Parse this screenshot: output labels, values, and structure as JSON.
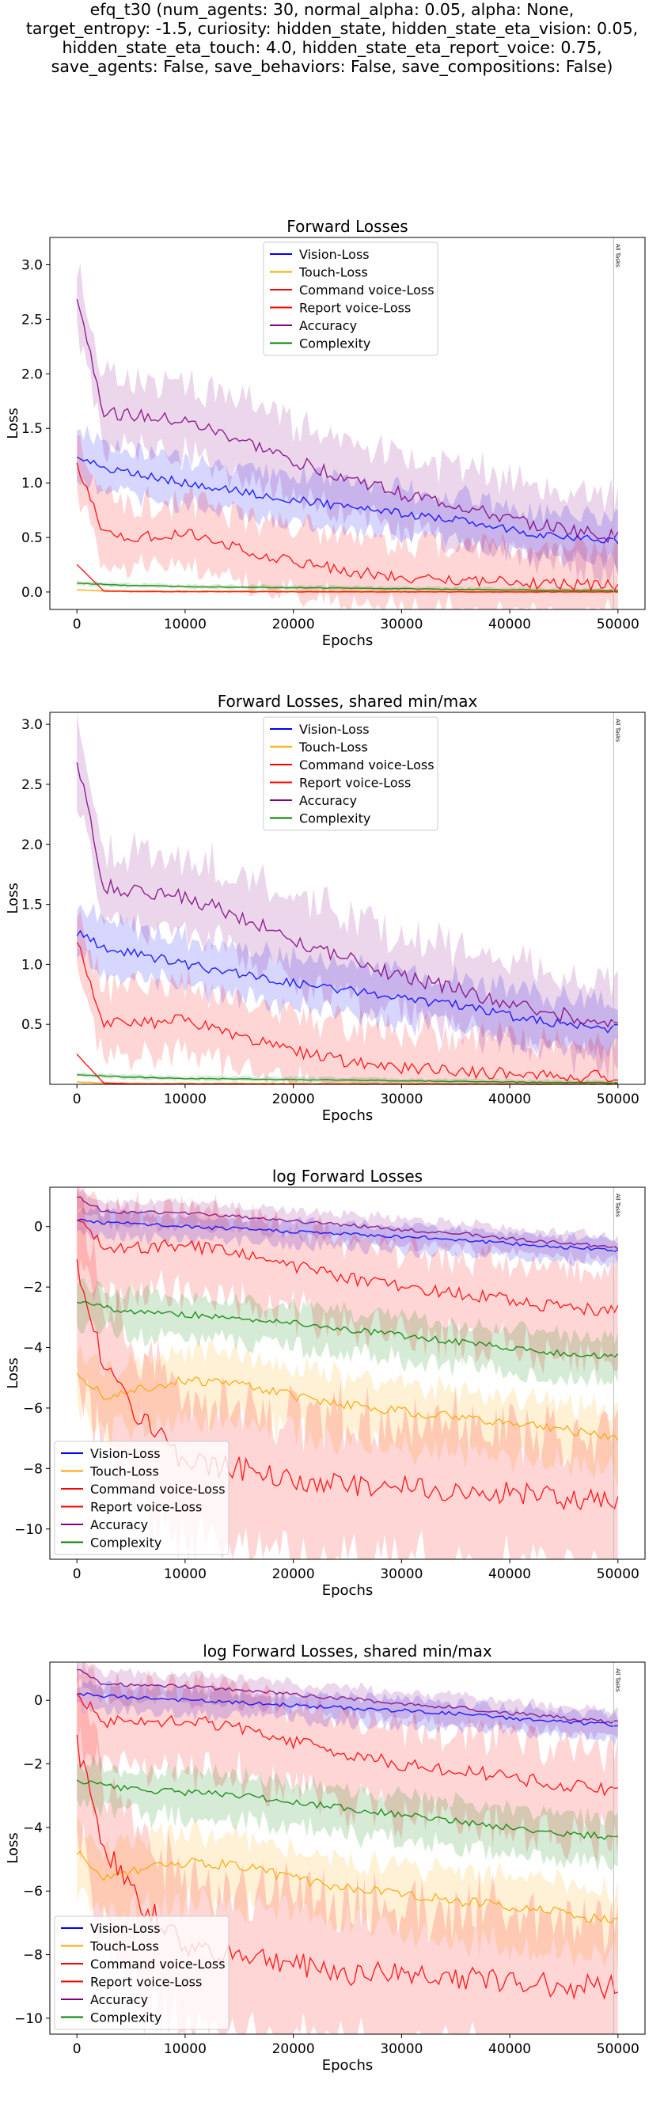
{
  "figure": {
    "title_lines": [
      "efq_t30 (num_agents: 30, normal_alpha: 0.05, alpha: None,",
      "target_entropy: -1.5, curiosity: hidden_state, hidden_state_eta_vision: 0.05,",
      "hidden_state_eta_touch: 4.0, hidden_state_eta_report_voice: 0.75,",
      "save_agents: False, save_behaviors: False, save_compositions: False)"
    ]
  },
  "chart_data": [
    {
      "type": "line",
      "title": "Forward Losses",
      "xlabel": "Epochs",
      "ylabel": "Loss",
      "xlim": [
        -2500,
        52500
      ],
      "ylim": [
        -0.16,
        3.25
      ],
      "xticks": [
        0,
        10000,
        20000,
        30000,
        40000,
        50000
      ],
      "xtick_labels": [
        "0",
        "10000",
        "20000",
        "30000",
        "40000",
        "50000"
      ],
      "yticks": [
        0,
        0.5,
        1,
        1.5,
        2,
        2.5,
        3
      ],
      "ytick_labels": [
        "0.0",
        "0.5",
        "1.0",
        "1.5",
        "2.0",
        "2.5",
        "3.0"
      ],
      "legend_position": "upper-center",
      "grid": false,
      "marker_line": {
        "x": 49600,
        "label": "All Tasks"
      },
      "series": [
        {
          "name": "Vision-Loss",
          "color": "#0000ff",
          "x": [
            0,
            2500,
            5000,
            10000,
            15000,
            20000,
            25000,
            30000,
            35000,
            40000,
            45000,
            50000
          ],
          "y": [
            1.27,
            1.13,
            1.1,
            1.0,
            0.92,
            0.85,
            0.78,
            0.72,
            0.66,
            0.57,
            0.5,
            0.46
          ]
        },
        {
          "name": "Touch-Loss",
          "color": "#ffa500",
          "x": [
            0,
            2500,
            5000,
            10000,
            15000,
            20000,
            25000,
            30000,
            35000,
            40000,
            45000,
            50000
          ],
          "y": [
            0.02,
            0.01,
            0.006,
            0.006,
            0.006,
            0.005,
            0.004,
            0.004,
            0.003,
            0.002,
            0.002,
            0.001
          ]
        },
        {
          "name": "Command voice-Loss",
          "color": "#ff0000",
          "x": [
            0,
            2500,
            5000,
            10000,
            15000,
            20000,
            25000,
            30000,
            35000,
            40000,
            45000,
            50000
          ],
          "y": [
            1.17,
            0.52,
            0.5,
            0.54,
            0.4,
            0.28,
            0.19,
            0.14,
            0.11,
            0.09,
            0.07,
            0.06
          ]
        },
        {
          "name": "Report voice-Loss",
          "color": "#ff0000",
          "x": [
            0,
            2500,
            5000,
            10000,
            15000,
            20000,
            25000,
            30000,
            35000,
            40000,
            45000,
            50000
          ],
          "y": [
            0.25,
            0.01,
            0.004,
            0.003,
            0.003,
            0.002,
            0.002,
            0.001,
            0.001,
            0.001,
            0.001,
            0.001
          ]
        },
        {
          "name": "Accuracy",
          "color": "#800080",
          "x": [
            0,
            2500,
            5000,
            10000,
            15000,
            20000,
            25000,
            30000,
            35000,
            40000,
            45000,
            50000
          ],
          "y": [
            2.72,
            1.65,
            1.62,
            1.56,
            1.4,
            1.2,
            1.05,
            0.9,
            0.8,
            0.66,
            0.58,
            0.5
          ]
        },
        {
          "name": "Complexity",
          "color": "#008000",
          "x": [
            0,
            2500,
            5000,
            10000,
            15000,
            20000,
            25000,
            30000,
            35000,
            40000,
            45000,
            50000
          ],
          "y": [
            0.08,
            0.07,
            0.06,
            0.05,
            0.045,
            0.04,
            0.035,
            0.03,
            0.025,
            0.02,
            0.015,
            0.014
          ]
        }
      ]
    },
    {
      "type": "line",
      "title": "Forward Losses, shared min/max",
      "xlabel": "Epochs",
      "ylabel": "Loss",
      "xlim": [
        -2500,
        52500
      ],
      "ylim": [
        0.0,
        3.1
      ],
      "xticks": [
        0,
        10000,
        20000,
        30000,
        40000,
        50000
      ],
      "xtick_labels": [
        "0",
        "10000",
        "20000",
        "30000",
        "40000",
        "50000"
      ],
      "yticks": [
        0.5,
        1,
        1.5,
        2,
        2.5,
        3
      ],
      "ytick_labels": [
        "0.5",
        "1.0",
        "1.5",
        "2.0",
        "2.5",
        "3.0"
      ],
      "legend_position": "upper-center",
      "grid": false,
      "marker_line": {
        "x": 49600,
        "label": "All Tasks"
      },
      "series": [
        {
          "name": "Vision-Loss",
          "color": "#0000ff",
          "x": [
            0,
            2500,
            5000,
            10000,
            15000,
            20000,
            25000,
            30000,
            35000,
            40000,
            45000,
            50000
          ],
          "y": [
            1.27,
            1.13,
            1.1,
            1.0,
            0.92,
            0.85,
            0.78,
            0.72,
            0.66,
            0.57,
            0.5,
            0.46
          ]
        },
        {
          "name": "Touch-Loss",
          "color": "#ffa500",
          "x": [
            0,
            2500,
            5000,
            10000,
            15000,
            20000,
            25000,
            30000,
            35000,
            40000,
            45000,
            50000
          ],
          "y": [
            0.02,
            0.01,
            0.006,
            0.006,
            0.006,
            0.005,
            0.004,
            0.004,
            0.003,
            0.002,
            0.002,
            0.001
          ]
        },
        {
          "name": "Command voice-Loss",
          "color": "#ff0000",
          "x": [
            0,
            2500,
            5000,
            10000,
            15000,
            20000,
            25000,
            30000,
            35000,
            40000,
            45000,
            50000
          ],
          "y": [
            1.17,
            0.52,
            0.5,
            0.54,
            0.4,
            0.28,
            0.19,
            0.14,
            0.11,
            0.09,
            0.07,
            0.06
          ]
        },
        {
          "name": "Report voice-Loss",
          "color": "#ff0000",
          "x": [
            0,
            2500,
            5000,
            10000,
            15000,
            20000,
            25000,
            30000,
            35000,
            40000,
            45000,
            50000
          ],
          "y": [
            0.25,
            0.01,
            0.004,
            0.003,
            0.003,
            0.002,
            0.002,
            0.001,
            0.001,
            0.001,
            0.001,
            0.001
          ]
        },
        {
          "name": "Accuracy",
          "color": "#800080",
          "x": [
            0,
            2500,
            5000,
            10000,
            15000,
            20000,
            25000,
            30000,
            35000,
            40000,
            45000,
            50000
          ],
          "y": [
            2.72,
            1.65,
            1.62,
            1.56,
            1.4,
            1.2,
            1.05,
            0.9,
            0.8,
            0.66,
            0.58,
            0.5
          ]
        },
        {
          "name": "Complexity",
          "color": "#008000",
          "x": [
            0,
            2500,
            5000,
            10000,
            15000,
            20000,
            25000,
            30000,
            35000,
            40000,
            45000,
            50000
          ],
          "y": [
            0.08,
            0.07,
            0.06,
            0.05,
            0.045,
            0.04,
            0.035,
            0.03,
            0.025,
            0.02,
            0.015,
            0.014
          ]
        }
      ]
    },
    {
      "type": "line",
      "title": "log Forward Losses",
      "xlabel": "Epochs",
      "ylabel": "Loss",
      "xlim": [
        -2500,
        52500
      ],
      "ylim": [
        -11.0,
        1.3
      ],
      "xticks": [
        0,
        10000,
        20000,
        30000,
        40000,
        50000
      ],
      "xtick_labels": [
        "0",
        "10000",
        "20000",
        "30000",
        "40000",
        "50000"
      ],
      "yticks": [
        -10,
        -8,
        -6,
        -4,
        -2,
        0
      ],
      "ytick_labels": [
        "−10",
        "−8",
        "−6",
        "−4",
        "−2",
        "0"
      ],
      "legend_position": "lower-left",
      "grid": false,
      "marker_line": {
        "x": 49600,
        "label": "All Tasks"
      },
      "series": [
        {
          "name": "Vision-Loss",
          "color": "#0000ff",
          "x": [
            0,
            2500,
            5000,
            10000,
            15000,
            20000,
            25000,
            30000,
            35000,
            40000,
            45000,
            50000
          ],
          "y": [
            0.24,
            0.12,
            0.1,
            0.0,
            -0.08,
            -0.16,
            -0.25,
            -0.33,
            -0.42,
            -0.56,
            -0.69,
            -0.78
          ]
        },
        {
          "name": "Touch-Loss",
          "color": "#ffa500",
          "x": [
            0,
            2500,
            5000,
            10000,
            15000,
            20000,
            25000,
            30000,
            35000,
            40000,
            45000,
            50000
          ],
          "y": [
            -4.8,
            -5.6,
            -5.4,
            -5.1,
            -5.2,
            -5.6,
            -5.9,
            -6.1,
            -6.3,
            -6.5,
            -6.7,
            -7.0
          ]
        },
        {
          "name": "Command voice-Loss",
          "color": "#ff0000",
          "x": [
            0,
            2500,
            5000,
            10000,
            15000,
            20000,
            25000,
            30000,
            35000,
            40000,
            45000,
            50000
          ],
          "y": [
            0.16,
            -0.65,
            -0.7,
            -0.6,
            -0.9,
            -1.3,
            -1.7,
            -2.0,
            -2.2,
            -2.4,
            -2.7,
            -2.8
          ]
        },
        {
          "name": "Report voice-Loss",
          "color": "#ff0000",
          "x": [
            0,
            2500,
            5000,
            10000,
            15000,
            20000,
            25000,
            30000,
            35000,
            40000,
            45000,
            50000
          ],
          "y": [
            -1.4,
            -4.6,
            -6.0,
            -7.8,
            -8.0,
            -8.3,
            -8.6,
            -8.6,
            -8.7,
            -8.8,
            -9.0,
            -9.0
          ]
        },
        {
          "name": "Accuracy",
          "color": "#800080",
          "x": [
            0,
            2500,
            5000,
            10000,
            15000,
            20000,
            25000,
            30000,
            35000,
            40000,
            45000,
            50000
          ],
          "y": [
            1.0,
            0.5,
            0.48,
            0.44,
            0.34,
            0.18,
            0.05,
            -0.1,
            -0.22,
            -0.4,
            -0.55,
            -0.7
          ]
        },
        {
          "name": "Complexity",
          "color": "#008000",
          "x": [
            0,
            2500,
            5000,
            10000,
            15000,
            20000,
            25000,
            30000,
            35000,
            40000,
            45000,
            50000
          ],
          "y": [
            -2.5,
            -2.7,
            -2.8,
            -2.9,
            -3.0,
            -3.2,
            -3.4,
            -3.6,
            -3.8,
            -4.0,
            -4.2,
            -4.3
          ]
        }
      ]
    },
    {
      "type": "line",
      "title": "log Forward Losses, shared min/max",
      "xlabel": "Epochs",
      "ylabel": "Loss",
      "xlim": [
        -2500,
        52500
      ],
      "ylim": [
        -10.5,
        1.2
      ],
      "xticks": [
        0,
        10000,
        20000,
        30000,
        40000,
        50000
      ],
      "xtick_labels": [
        "0",
        "10000",
        "20000",
        "30000",
        "40000",
        "50000"
      ],
      "yticks": [
        -10,
        -8,
        -6,
        -4,
        -2,
        0
      ],
      "ytick_labels": [
        "−10",
        "−8",
        "−6",
        "−4",
        "−2",
        "0"
      ],
      "legend_position": "lower-left",
      "grid": false,
      "marker_line": {
        "x": 49600,
        "label": "All Tasks"
      },
      "series": [
        {
          "name": "Vision-Loss",
          "color": "#0000ff",
          "x": [
            0,
            2500,
            5000,
            10000,
            15000,
            20000,
            25000,
            30000,
            35000,
            40000,
            45000,
            50000
          ],
          "y": [
            0.24,
            0.12,
            0.1,
            0.0,
            -0.08,
            -0.16,
            -0.25,
            -0.33,
            -0.42,
            -0.56,
            -0.69,
            -0.78
          ]
        },
        {
          "name": "Touch-Loss",
          "color": "#ffa500",
          "x": [
            0,
            2500,
            5000,
            10000,
            15000,
            20000,
            25000,
            30000,
            35000,
            40000,
            45000,
            50000
          ],
          "y": [
            -4.8,
            -5.6,
            -5.4,
            -5.1,
            -5.2,
            -5.6,
            -5.9,
            -6.1,
            -6.3,
            -6.5,
            -6.7,
            -7.0
          ]
        },
        {
          "name": "Command voice-Loss",
          "color": "#ff0000",
          "x": [
            0,
            2500,
            5000,
            10000,
            15000,
            20000,
            25000,
            30000,
            35000,
            40000,
            45000,
            50000
          ],
          "y": [
            0.16,
            -0.65,
            -0.7,
            -0.6,
            -0.9,
            -1.3,
            -1.7,
            -2.0,
            -2.2,
            -2.4,
            -2.7,
            -2.8
          ]
        },
        {
          "name": "Report voice-Loss",
          "color": "#ff0000",
          "x": [
            0,
            2500,
            5000,
            10000,
            15000,
            20000,
            25000,
            30000,
            35000,
            40000,
            45000,
            50000
          ],
          "y": [
            -1.4,
            -4.6,
            -6.0,
            -7.8,
            -8.0,
            -8.3,
            -8.6,
            -8.6,
            -8.7,
            -8.8,
            -9.0,
            -9.0
          ]
        },
        {
          "name": "Accuracy",
          "color": "#800080",
          "x": [
            0,
            2500,
            5000,
            10000,
            15000,
            20000,
            25000,
            30000,
            35000,
            40000,
            45000,
            50000
          ],
          "y": [
            1.0,
            0.5,
            0.48,
            0.44,
            0.34,
            0.18,
            0.05,
            -0.1,
            -0.22,
            -0.4,
            -0.55,
            -0.7
          ]
        },
        {
          "name": "Complexity",
          "color": "#008000",
          "x": [
            0,
            2500,
            5000,
            10000,
            15000,
            20000,
            25000,
            30000,
            35000,
            40000,
            45000,
            50000
          ],
          "y": [
            -2.5,
            -2.7,
            -2.8,
            -2.9,
            -3.0,
            -3.2,
            -3.4,
            -3.6,
            -3.8,
            -4.0,
            -4.2,
            -4.3
          ]
        }
      ]
    }
  ]
}
